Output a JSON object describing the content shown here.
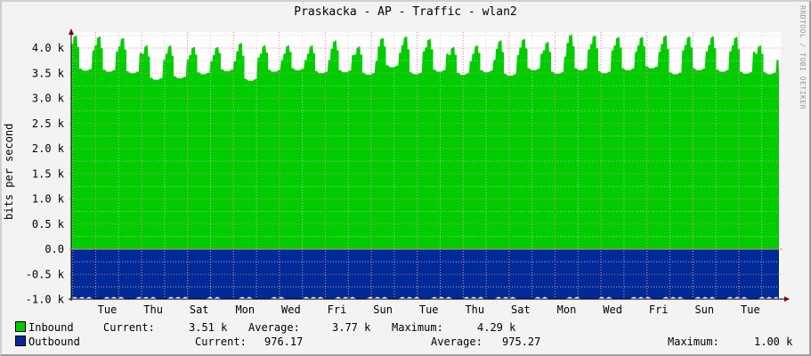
{
  "title": "Praskacka - AP - Traffic - wlan2",
  "ylabel": "bits per second",
  "watermark": "RRDTOOL / TOBI OETIKER",
  "colors": {
    "inbound": "#00cc00",
    "outbound": "#002a97",
    "grid_major": "#e08080",
    "grid_minor": "#c8c8c8",
    "axis": "#800000"
  },
  "legend": {
    "inbound": {
      "label": "Inbound",
      "current_label": "Current:",
      "current": "3.51 k",
      "average_label": "Average:",
      "average": "3.77 k",
      "maximum_label": "Maximum:",
      "maximum": "4.29 k"
    },
    "outbound": {
      "label": "Outbound",
      "current_label": "Current:",
      "current": "976.17",
      "average_label": "Average:",
      "average": "975.27",
      "maximum_label": "Maximum:",
      "maximum": "1.00 k"
    }
  },
  "chart_data": {
    "type": "area",
    "title": "Praskacka - AP - Traffic - wlan2",
    "xlabel": "",
    "ylabel": "bits per second",
    "ylim": [
      -1000,
      4300
    ],
    "yticks": [
      "4.0 k",
      "3.5 k",
      "3.0 k",
      "2.5 k",
      "2.0 k",
      "1.5 k",
      "1.0 k",
      "0.5 k",
      "0.0",
      "-0.5 k",
      "-1.0 k"
    ],
    "xticks": [
      "Tue",
      "Thu",
      "Sat",
      "Mon",
      "Wed",
      "Fri",
      "Sun",
      "Tue",
      "Thu",
      "Sat",
      "Mon",
      "Wed",
      "Fri",
      "Sun",
      "Tue"
    ],
    "grid": true,
    "legend_position": "bottom",
    "series": [
      {
        "name": "Inbound",
        "color": "#00cc00",
        "current": 3510,
        "average": 3770,
        "maximum": 4290,
        "daily_peaks": [
          4250,
          4230,
          4200,
          4050,
          4050,
          4020,
          4020,
          4100,
          4050,
          4050,
          4050,
          4150,
          4030,
          4200,
          4230,
          4180,
          4020,
          4050,
          4150,
          4180,
          4120,
          4270,
          4250,
          4220,
          4220,
          4250,
          4230,
          4230,
          4220,
          4050
        ],
        "daily_lows": [
          3550,
          3530,
          3500,
          3370,
          3400,
          3480,
          3540,
          3350,
          3530,
          3560,
          3500,
          3520,
          3470,
          3620,
          3480,
          3530,
          3470,
          3520,
          3450,
          3560,
          3490,
          3560,
          3500,
          3560,
          3600,
          3480,
          3560,
          3530,
          3490,
          3480
        ]
      },
      {
        "name": "Outbound",
        "color": "#002a97",
        "current": -976.17,
        "average": -975.27,
        "maximum": -1000
      }
    ]
  }
}
